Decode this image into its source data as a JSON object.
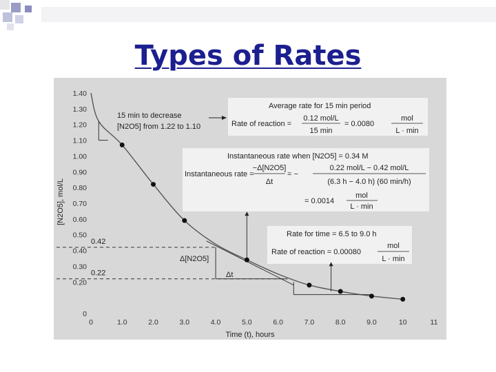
{
  "slide": {
    "title": "Types of Rates"
  },
  "colors": {
    "title": "#1b1f8f",
    "panel": "#d8d8d8",
    "box": "#f1f1f1",
    "curve": "#555555",
    "point": "#111111",
    "decor_dark": "#9a9cc6",
    "decor_light": "#e6e6ea"
  },
  "chart_data": {
    "type": "line",
    "title": "",
    "xlabel": "Time (t), hours",
    "ylabel": "[N2O5], mol/L",
    "xlim": [
      0,
      11
    ],
    "ylim": [
      0,
      1.4
    ],
    "x_ticks": [
      "0",
      "1.0",
      "2.0",
      "3.0",
      "4.0",
      "5.0",
      "6.0",
      "7.0",
      "8.0",
      "9.0",
      "10",
      "11"
    ],
    "y_ticks": [
      "0",
      "0.20",
      "0.30",
      "0.40",
      "0.50",
      "0.60",
      "0.70",
      "0.80",
      "0.90",
      "1.00",
      "1.10",
      "1.20",
      "1.30",
      "1.40"
    ],
    "series": [
      {
        "name": "[N2O5]",
        "x": [
          0,
          0.25,
          1,
          2,
          3,
          4,
          5,
          6,
          7,
          8,
          9,
          10
        ],
        "y": [
          1.4,
          1.22,
          1.07,
          0.82,
          0.59,
          0.44,
          0.34,
          0.25,
          0.18,
          0.14,
          0.11,
          0.09
        ]
      }
    ],
    "points": [
      {
        "x": 1,
        "y": 1.07
      },
      {
        "x": 2,
        "y": 0.82
      },
      {
        "x": 3,
        "y": 0.59
      },
      {
        "x": 5,
        "y": 0.34
      },
      {
        "x": 7,
        "y": 0.18
      },
      {
        "x": 8,
        "y": 0.14
      },
      {
        "x": 9,
        "y": 0.11
      },
      {
        "x": 10,
        "y": 0.09
      }
    ],
    "reference_lines": [
      {
        "label": "0.42",
        "y": 0.42
      },
      {
        "label": "0.22",
        "y": 0.22
      }
    ],
    "annotations": {
      "box1": {
        "label": "15 min to decrease",
        "label2": "[N2O5] from 1.22 to 1.10",
        "heading": "Average rate for 15 min period",
        "prefix": "Rate of reaction =",
        "num": "0.12 mol/L",
        "den": "15 min",
        "mid": "= 0.0080",
        "unit_num": "mol",
        "unit_den": "L · min"
      },
      "box2": {
        "heading": "Instantaneous rate when [N2O5] = 0.34 M",
        "prefix": "Instantaneous rate =",
        "f1_num": "−Δ[N2O5]",
        "f1_den": "Δt",
        "eq": "= −",
        "f2_num": "0.22 mol/L − 0.42 mol/L",
        "f2_den": "(6.3 h − 4.0 h) (60 min/h)",
        "result": "= 0.0014",
        "unit_num": "mol",
        "unit_den": "L · min"
      },
      "box3": {
        "heading": "Rate for time = 6.5 to 9.0 h",
        "prefix": "Rate of reaction = 0.00080",
        "unit_num": "mol",
        "unit_den": "L · min"
      },
      "delta_c": "Δ[N2O5]",
      "delta_t": "Δt"
    }
  }
}
